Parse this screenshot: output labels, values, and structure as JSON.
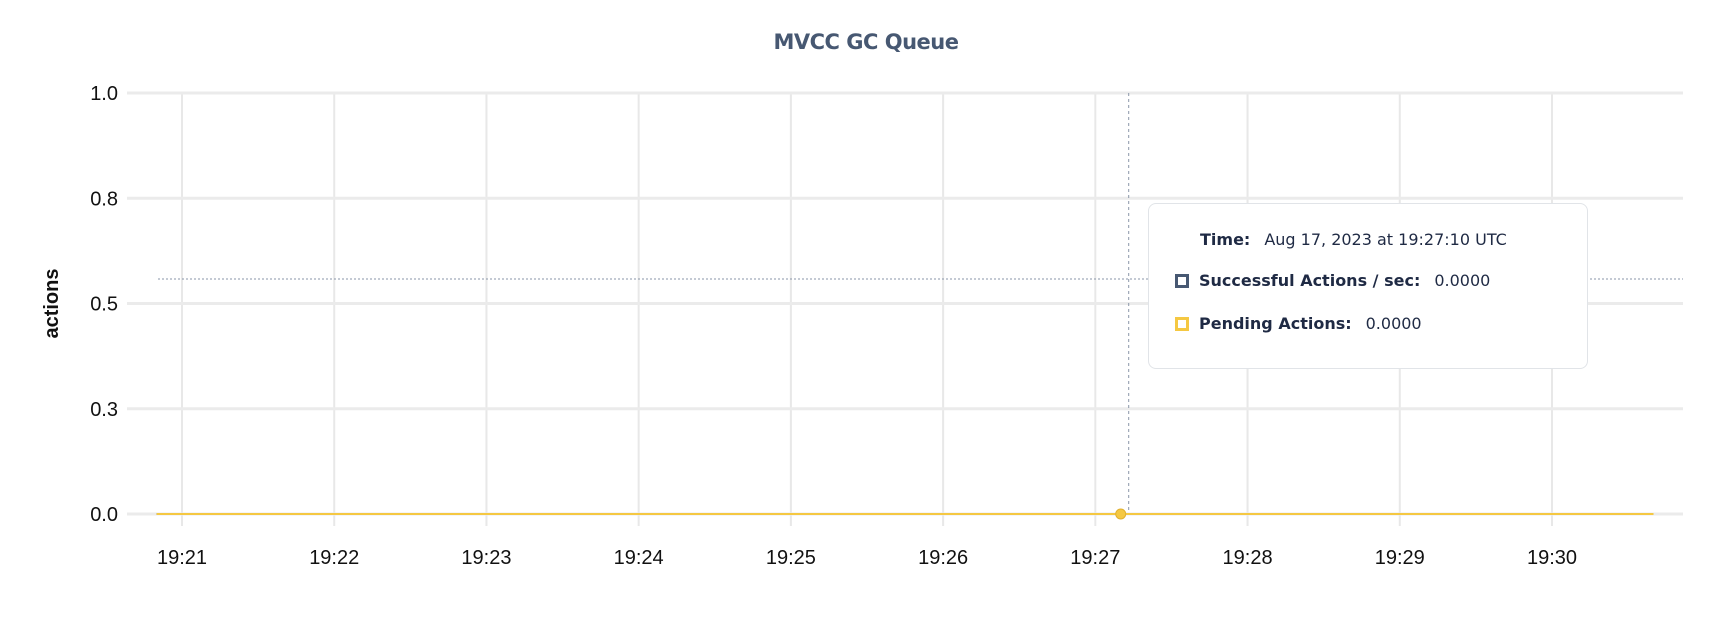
{
  "chart_data": {
    "type": "line",
    "title": "MVCC GC Queue",
    "ylabel": "actions",
    "xlabel": "",
    "ylim": [
      0,
      1
    ],
    "yticks": [
      0,
      0.25,
      0.5,
      0.75,
      1
    ],
    "ytick_labels": [
      "0.0",
      "0.3",
      "0.5",
      "0.8",
      "1.0"
    ],
    "xtick_labels": [
      "19:21",
      "19:22",
      "19:23",
      "19:24",
      "19:25",
      "19:26",
      "19:27",
      "19:28",
      "19:29",
      "19:30"
    ],
    "xlim": [
      "19:20:44",
      "19:30:44"
    ],
    "grid": true,
    "series": [
      {
        "name": "Successful Actions / sec",
        "color": "#475872",
        "x": [
          "19:20:50",
          "19:30:40"
        ],
        "values": [
          0,
          0
        ]
      },
      {
        "name": "Pending Actions",
        "color": "#F5C842",
        "x": [
          "19:20:50",
          "19:30:40"
        ],
        "values": [
          0,
          0
        ]
      }
    ],
    "hover": {
      "time": "19:27:10",
      "value": 0
    }
  },
  "tooltip": {
    "time_label": "Time:",
    "time_value": "Aug 17, 2023 at 19:27:10 UTC",
    "rows": [
      {
        "label": "Successful Actions / sec:",
        "value": "0.0000",
        "color": "#475872"
      },
      {
        "label": "Pending Actions:",
        "value": "0.0000",
        "color": "#F5C842"
      }
    ]
  }
}
